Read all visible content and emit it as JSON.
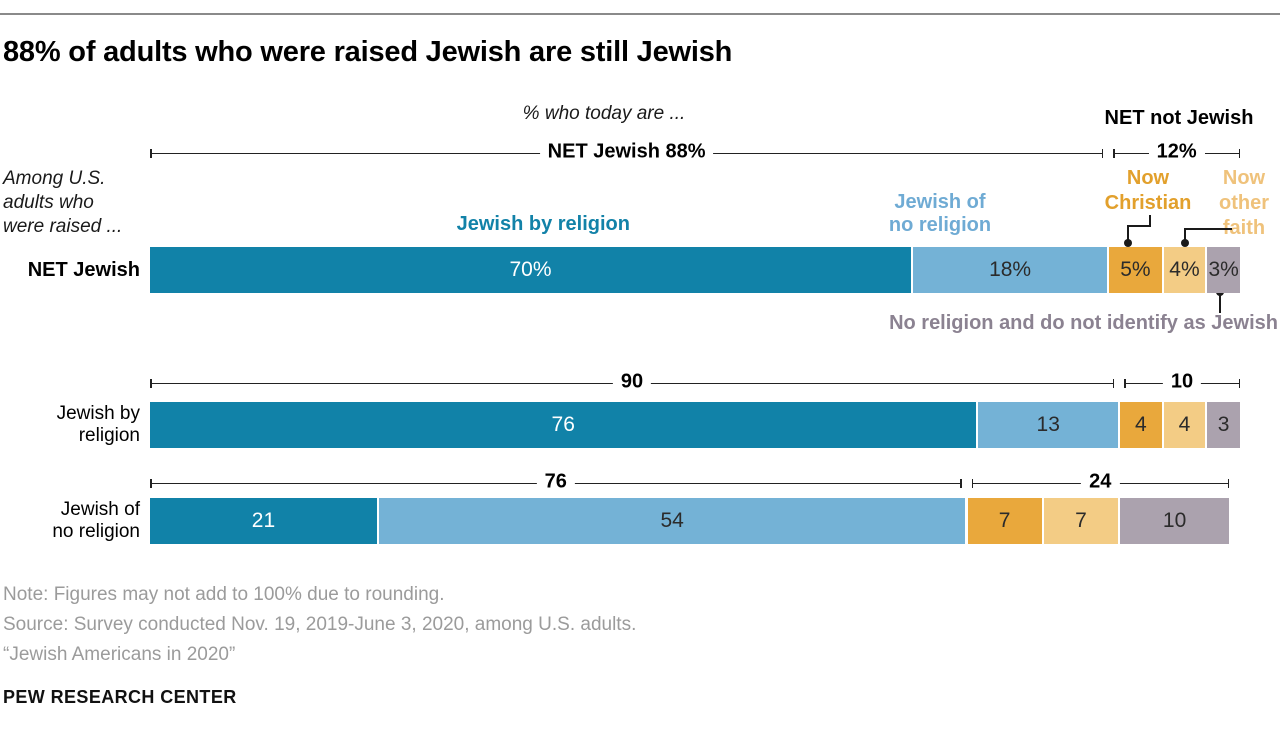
{
  "header": {
    "title": "88% of adults who were raised Jewish are still Jewish",
    "subtitle": "% who today are ...",
    "axis_note": "Among U.S.\nadults who\nwere raised ...",
    "net_not_jewish_label": "NET not Jewish"
  },
  "legend": {
    "jewish_by_religion": "Jewish by religion",
    "jewish_no_religion": "Jewish of\nno religion",
    "now_christian": "Now\nChristian",
    "now_other_faith": "Now\nother\nfaith",
    "no_religion_not_jewish": "No religion and do not identify as Jewish"
  },
  "colors": {
    "series": [
      "#1182a8",
      "#74b2d6",
      "#e9a83c",
      "#f3cc85",
      "#aba2ae"
    ],
    "label_blue": "#1282a8",
    "label_light_blue": "#6fabd4",
    "label_orange": "#e2a02c",
    "label_tan": "#efc27b",
    "label_gray_purple": "#8b8291",
    "footer_gray": "#9b9b9b",
    "bar_text_dark": "#2b2b2b",
    "bar_text_light": "#ffffff"
  },
  "chart_data": {
    "type": "bar",
    "stacked": true,
    "orientation": "horizontal",
    "units": "percent of U.S. adults raised in each group",
    "title": "88% of adults who were raised Jewish are still Jewish",
    "subtitle": "% who today are ...",
    "xlim": [
      0,
      100
    ],
    "grid": false,
    "series_names": [
      "Jewish by religion",
      "Jewish of no religion",
      "Now Christian",
      "Now other faith",
      "No religion and do not identify as Jewish"
    ],
    "series_keys": [
      "jewish-by-religion",
      "jewish-of-no-religion",
      "now-christian",
      "now-other-faith",
      "no-religion-not-jewish"
    ],
    "rows": [
      {
        "label": "NET Jewish",
        "bold": true,
        "values": [
          70,
          18,
          5,
          4,
          3
        ],
        "value_labels": [
          "70%",
          "18%",
          "5%",
          "4%",
          "3%"
        ],
        "net_left": "NET Jewish 88%",
        "net_right": "12%"
      },
      {
        "label": "Jewish by\nreligion",
        "bold": false,
        "values": [
          76,
          13,
          4,
          4,
          3
        ],
        "value_labels": [
          "76",
          "13",
          "4",
          "4",
          "3"
        ],
        "net_left": "90",
        "net_right": "10"
      },
      {
        "label": "Jewish of\nno religion",
        "bold": false,
        "values": [
          21,
          54,
          7,
          7,
          10
        ],
        "value_labels": [
          "21",
          "54",
          "7",
          "7",
          "10"
        ],
        "net_left": "76",
        "net_right": "24"
      }
    ]
  },
  "footer": {
    "note": "Note: Figures may not add to 100% due to rounding.",
    "source": "Source: Survey conducted Nov. 19, 2019-June 3, 2020, among U.S. adults.",
    "report": "“Jewish Americans in 2020”",
    "brand": "PEW RESEARCH CENTER"
  }
}
